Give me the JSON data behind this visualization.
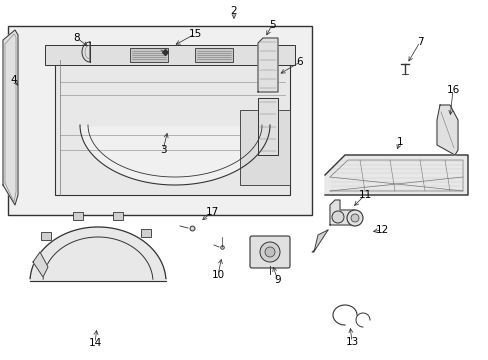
{
  "background_color": "#ffffff",
  "fig_width": 4.89,
  "fig_height": 3.6,
  "dpi": 100,
  "gray": "#333333",
  "lgray": "#777777",
  "panel_fill": "#eeeeee",
  "part_fill": "#e8e8e8"
}
